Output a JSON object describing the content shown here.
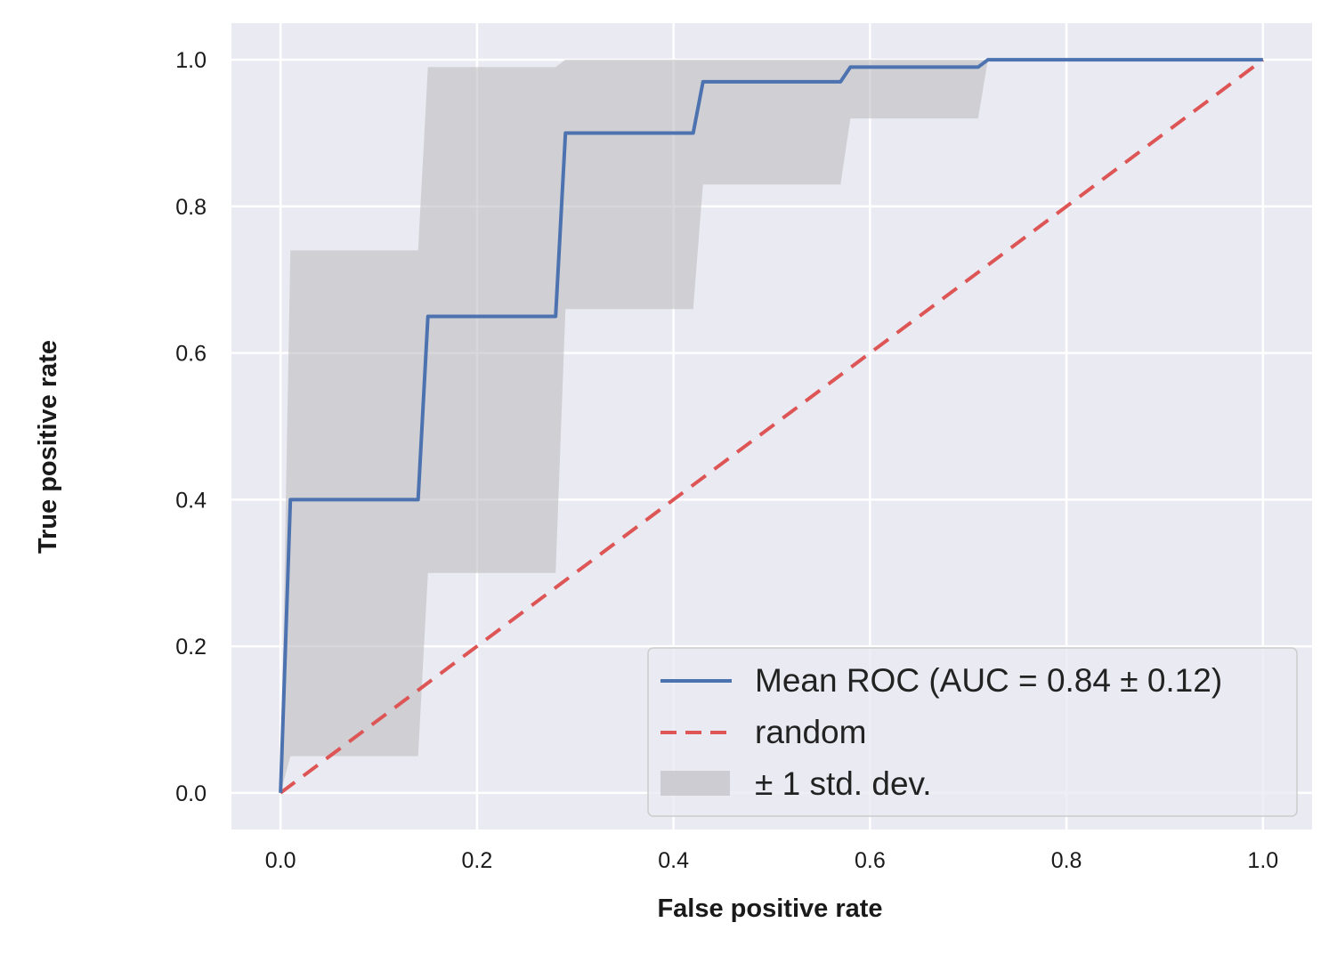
{
  "chart_data": {
    "type": "line",
    "title": "",
    "xlabel": "False positive rate",
    "ylabel": "True positive rate",
    "xlim": [
      -0.05,
      1.05
    ],
    "ylim": [
      -0.05,
      1.05
    ],
    "xticks": [
      0.0,
      0.2,
      0.4,
      0.6,
      0.8,
      1.0
    ],
    "yticks": [
      0.0,
      0.2,
      0.4,
      0.6,
      0.8,
      1.0
    ],
    "xtick_labels": [
      "0.0",
      "0.2",
      "0.4",
      "0.6",
      "0.8",
      "1.0"
    ],
    "ytick_labels": [
      "0.0",
      "0.2",
      "0.4",
      "0.6",
      "0.8",
      "1.0"
    ],
    "grid": true,
    "style": "seaborn-darkgrid",
    "colors": {
      "plot_background": "#eaeaf2",
      "grid": "#ffffff",
      "mean_roc": "#4c72b0",
      "random": "#dd5555",
      "std_band": "#b8b8bc",
      "text": "#1a1a1a"
    },
    "series": [
      {
        "name": "Mean ROC (AUC = 0.84 ± 0.12)",
        "kind": "line",
        "x": [
          0.0,
          0.01,
          0.14,
          0.15,
          0.28,
          0.29,
          0.42,
          0.43,
          0.57,
          0.58,
          0.71,
          0.72,
          1.0
        ],
        "y": [
          0.0,
          0.4,
          0.4,
          0.65,
          0.65,
          0.9,
          0.9,
          0.97,
          0.97,
          0.99,
          0.99,
          1.0,
          1.0
        ]
      },
      {
        "name": "random",
        "kind": "dashed-line",
        "x": [
          0.0,
          1.0
        ],
        "y": [
          0.0,
          1.0
        ]
      },
      {
        "name": "± 1 std. dev.",
        "kind": "band",
        "x": [
          0.0,
          0.01,
          0.14,
          0.15,
          0.28,
          0.29,
          0.42,
          0.43,
          0.57,
          0.58,
          0.71,
          0.72,
          1.0
        ],
        "upper": [
          0.0,
          0.74,
          0.74,
          0.99,
          0.99,
          1.0,
          1.0,
          1.0,
          1.0,
          1.0,
          1.0,
          1.0,
          1.0
        ],
        "lower": [
          0.0,
          0.05,
          0.05,
          0.3,
          0.3,
          0.66,
          0.66,
          0.83,
          0.83,
          0.92,
          0.92,
          1.0,
          1.0
        ]
      }
    ],
    "legend": {
      "position": "lower-right",
      "entries": [
        {
          "label": "Mean ROC (AUC = 0.84 ± 0.12)",
          "symbol": "line"
        },
        {
          "label": "random",
          "symbol": "dashed-line"
        },
        {
          "label": "± 1 std. dev.",
          "symbol": "patch"
        }
      ]
    }
  }
}
